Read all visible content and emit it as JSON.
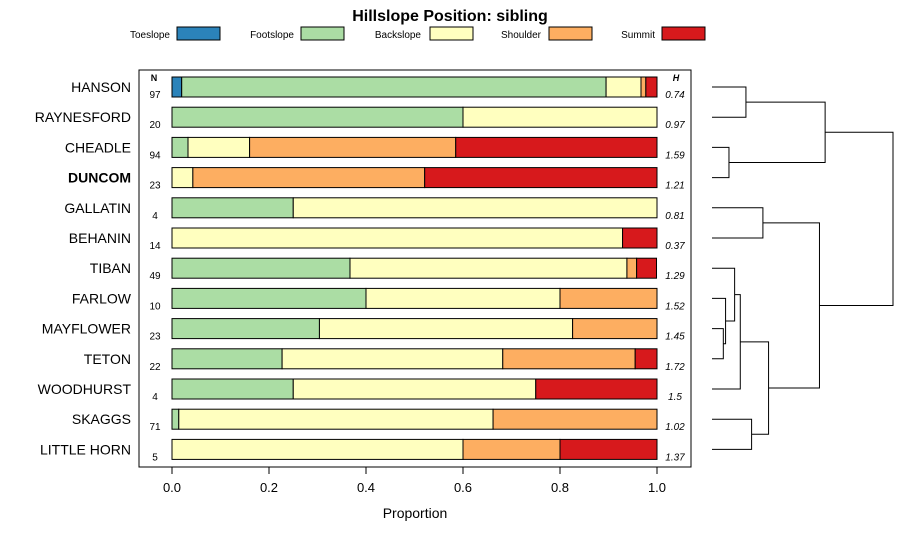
{
  "chart_data": {
    "type": "bar",
    "orientation": "horizontal",
    "stacked": true,
    "title": "Hillslope Position: sibling",
    "xlabel": "Proportion",
    "xlim": [
      0,
      1
    ],
    "x_ticks": [
      "0.0",
      "0.2",
      "0.4",
      "0.6",
      "0.8",
      "1.0"
    ],
    "legend_placement": "top",
    "categories": [
      "HANSON",
      "RAYNESFORD",
      "CHEADLE",
      "DUNCOM",
      "GALLATIN",
      "BEHANIN",
      "TIBAN",
      "FARLOW",
      "MAYFLOWER",
      "TETON",
      "WOODHURST",
      "SKAGGS",
      "LITTLE HORN"
    ],
    "highlighted_category": "DUNCOM",
    "n_header": "N",
    "h_header": "H",
    "n_values": [
      "97",
      "20",
      "94",
      "23",
      "4",
      "14",
      "49",
      "10",
      "23",
      "22",
      "4",
      "71",
      "5"
    ],
    "h_values": [
      "0.74",
      "0.97",
      "1.59",
      "1.21",
      "0.81",
      "0.37",
      "1.29",
      "1.52",
      "1.45",
      "1.72",
      "1.5",
      "1.02",
      "1.37"
    ],
    "series": [
      {
        "name": "Toeslope",
        "color": "#2b83ba",
        "values": [
          0.02,
          0,
          0,
          0,
          0,
          0,
          0,
          0,
          0,
          0,
          0,
          0,
          0
        ]
      },
      {
        "name": "Footslope",
        "color": "#abdda4",
        "values": [
          0.875,
          0.6,
          0.033,
          0,
          0.25,
          0,
          0.367,
          0.4,
          0.304,
          0.227,
          0.25,
          0.014,
          0
        ]
      },
      {
        "name": "Backslope",
        "color": "#ffffbf",
        "values": [
          0.072,
          0.4,
          0.127,
          0.043,
          0.75,
          0.929,
          0.571,
          0.4,
          0.522,
          0.455,
          0.5,
          0.648,
          0.6
        ]
      },
      {
        "name": "Shoulder",
        "color": "#fdae61",
        "values": [
          0.01,
          0,
          0.425,
          0.478,
          0,
          0,
          0.02,
          0.2,
          0.174,
          0.273,
          0,
          0.338,
          0.2
        ]
      },
      {
        "name": "Summit",
        "color": "#d7191c",
        "values": [
          0.023,
          0,
          0.415,
          0.479,
          0,
          0.071,
          0.041,
          0,
          0,
          0.045,
          0.25,
          0,
          0.2
        ]
      }
    ],
    "dendrogram": {
      "merges": [
        [
          0,
          1
        ],
        [
          2,
          3
        ],
        [
          8,
          9
        ],
        [
          4,
          5
        ],
        [
          11,
          12
        ],
        [
          "c2",
          7
        ],
        [
          "c5",
          6
        ],
        [
          "c6",
          10
        ],
        [
          "c7",
          "c4"
        ],
        [
          "c3",
          "c8"
        ],
        [
          "c0",
          "c1"
        ],
        [
          "c10",
          "c9"
        ]
      ],
      "heights": [
        0.3,
        0.15,
        0.1,
        0.45,
        0.35,
        0.12,
        0.2,
        0.25,
        0.5,
        0.95,
        1.0,
        1.6
      ]
    }
  }
}
